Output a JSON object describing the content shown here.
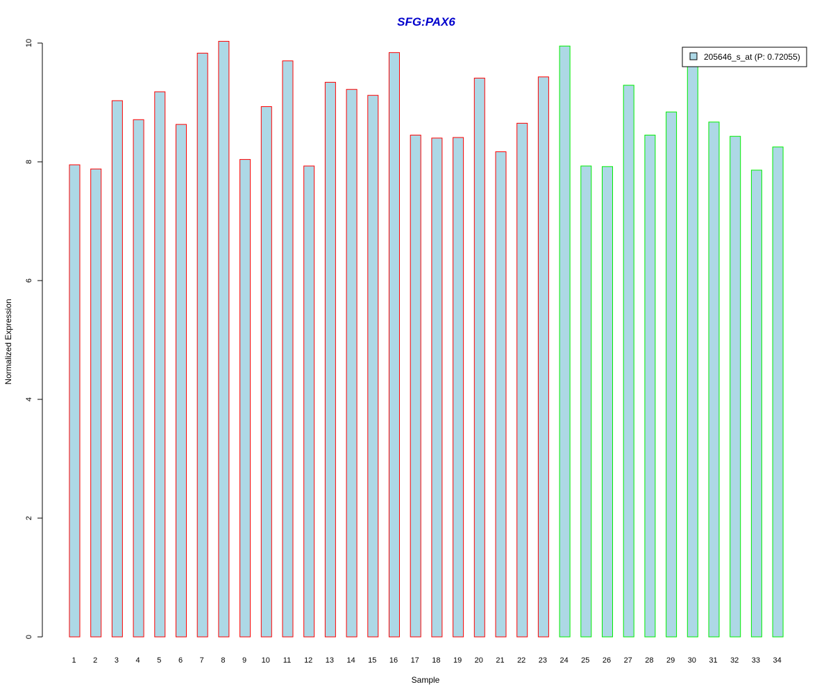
{
  "chart_data": {
    "type": "bar",
    "title": "SFG:PAX6",
    "xlabel": "Sample",
    "ylabel": "Normalized Expression",
    "ylim": [
      0,
      10
    ],
    "yticks": [
      0,
      2,
      4,
      6,
      8,
      10
    ],
    "grid": false,
    "legend_position": "top-right",
    "categories": [
      "1",
      "2",
      "3",
      "4",
      "5",
      "6",
      "7",
      "8",
      "9",
      "10",
      "11",
      "12",
      "13",
      "14",
      "15",
      "16",
      "17",
      "18",
      "19",
      "20",
      "21",
      "22",
      "23",
      "24",
      "25",
      "26",
      "27",
      "28",
      "29",
      "30",
      "31",
      "32",
      "33",
      "34"
    ],
    "series": [
      {
        "name": "205646_s_at (P: 0.72055)",
        "values": [
          7.95,
          7.88,
          9.03,
          8.71,
          9.18,
          8.63,
          9.83,
          10.03,
          8.04,
          8.93,
          9.7,
          7.93,
          9.34,
          9.22,
          9.12,
          9.84,
          8.45,
          8.4,
          8.41,
          9.41,
          8.17,
          8.65,
          9.43,
          9.95,
          7.93,
          7.92,
          9.29,
          8.45,
          8.84,
          9.65,
          8.67,
          8.43,
          7.86,
          8.25
        ],
        "group": [
          "a",
          "a",
          "a",
          "a",
          "a",
          "a",
          "a",
          "a",
          "a",
          "a",
          "a",
          "a",
          "a",
          "a",
          "a",
          "a",
          "a",
          "a",
          "a",
          "a",
          "a",
          "a",
          "a",
          "b",
          "b",
          "b",
          "b",
          "b",
          "b",
          "b",
          "b",
          "b",
          "b",
          "b"
        ]
      }
    ],
    "colors": {
      "bar_fill": "#add8e6",
      "group_a_border": "#ff0000",
      "group_b_border": "#00ee00",
      "title": "#0000cc",
      "axis": "#000000"
    }
  }
}
